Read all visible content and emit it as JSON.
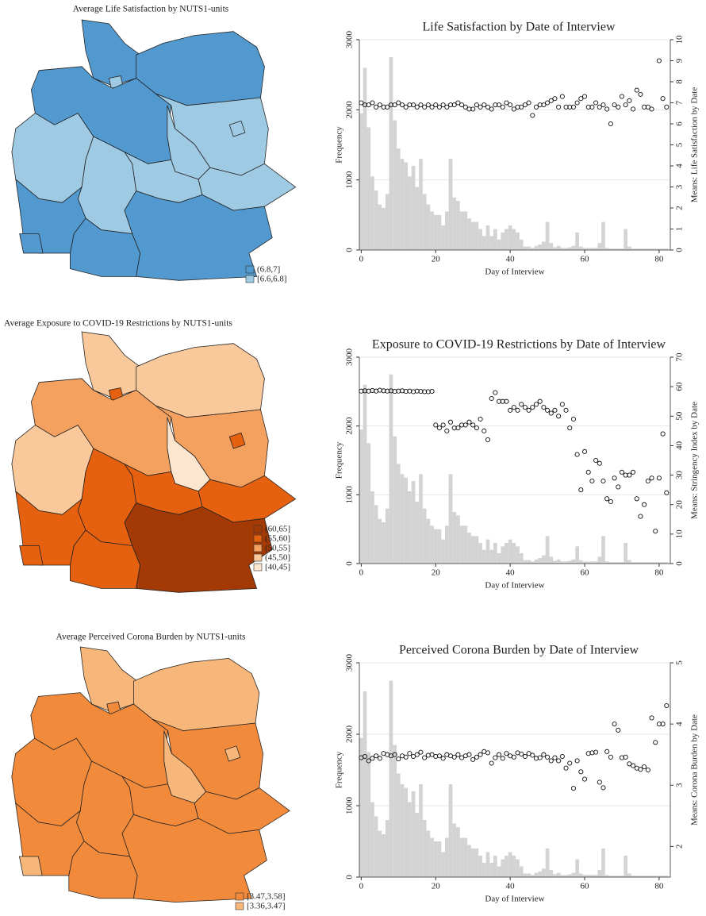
{
  "maps": [
    {
      "title": "Average Life Satisfaction by NUTS1-units",
      "legend": [
        {
          "label": "(6.8,7]",
          "color": "#5299d0"
        },
        {
          "label": "[6.6,6.8]",
          "color": "#9fcae3"
        }
      ]
    },
    {
      "title": "Average Exposure to COVID-19 Restrictions by NUTS1-units",
      "legend": [
        {
          "label": "(60,65]",
          "color": "#a33a06"
        },
        {
          "label": "(55,60]",
          "color": "#e5600f"
        },
        {
          "label": "(50,55]",
          "color": "#f4a05e"
        },
        {
          "label": "(45,50]",
          "color": "#f9c99c"
        },
        {
          "label": "[40,45]",
          "color": "#fde6cf"
        }
      ]
    },
    {
      "title": "Average Perceived Corona Burden by NUTS1-units",
      "legend": [
        {
          "label": "[3.47,3.58]",
          "color": "#f28a3b"
        },
        {
          "label": "[3.36,3.47]",
          "color": "#f7b77a"
        }
      ]
    }
  ],
  "chart_data": [
    {
      "type": "combo",
      "title": "Life Satisfaction by Date of Interview",
      "x_label": "Day of Interview",
      "y_label": "Frequency",
      "y2_label": "Means: Life Satisfaction by Date",
      "grid": true,
      "xlim": [
        -0.5,
        83
      ],
      "xticks": [
        0,
        20,
        40,
        60,
        80
      ],
      "ylim": [
        0,
        3000
      ],
      "yticks": [
        0,
        1000,
        2000,
        3000
      ],
      "y2lim": [
        0,
        10
      ],
      "y2ticks": [
        0,
        1,
        2,
        3,
        4,
        5,
        6,
        7,
        8,
        9,
        10
      ],
      "x": [
        0,
        1,
        2,
        3,
        4,
        5,
        6,
        7,
        8,
        9,
        10,
        11,
        12,
        13,
        14,
        15,
        16,
        17,
        18,
        19,
        20,
        21,
        22,
        23,
        24,
        25,
        26,
        27,
        28,
        29,
        30,
        31,
        32,
        33,
        34,
        35,
        36,
        37,
        38,
        39,
        40,
        41,
        42,
        43,
        44,
        45,
        46,
        47,
        48,
        49,
        50,
        51,
        52,
        53,
        54,
        55,
        56,
        57,
        58,
        59,
        60,
        61,
        62,
        63,
        64,
        65,
        66,
        67,
        68,
        69,
        70,
        71,
        72,
        73,
        74,
        75,
        76,
        77,
        78,
        79,
        80,
        81,
        82
      ],
      "series": [
        {
          "type": "bar",
          "color": "#d3d3d3",
          "values": [
            1950,
            2600,
            1750,
            1050,
            850,
            650,
            600,
            800,
            2750,
            1850,
            1450,
            1300,
            1250,
            1050,
            1200,
            900,
            1300,
            800,
            650,
            550,
            500,
            500,
            350,
            550,
            1300,
            750,
            700,
            550,
            550,
            450,
            400,
            400,
            300,
            200,
            350,
            200,
            300,
            150,
            250,
            300,
            350,
            300,
            250,
            150,
            50,
            50,
            30,
            60,
            80,
            120,
            400,
            100,
            40,
            60,
            30,
            30,
            40,
            60,
            250,
            50,
            30,
            30,
            30,
            30,
            100,
            400,
            30,
            20,
            20,
            20,
            20,
            300,
            50,
            20,
            20,
            20,
            20,
            20,
            20,
            20,
            20,
            20,
            20
          ]
        },
        {
          "type": "scatter",
          "axis": "y2",
          "color": "#111111",
          "values": [
            7.0,
            6.9,
            6.9,
            7.0,
            6.8,
            6.9,
            6.8,
            6.8,
            6.9,
            6.9,
            7.0,
            6.9,
            6.8,
            6.9,
            6.9,
            6.8,
            6.9,
            6.8,
            6.9,
            6.8,
            6.9,
            6.8,
            6.9,
            6.8,
            6.9,
            6.9,
            7.0,
            6.9,
            6.8,
            6.7,
            6.7,
            6.9,
            6.8,
            6.9,
            6.8,
            6.7,
            6.9,
            6.9,
            6.8,
            7.0,
            6.9,
            6.7,
            6.8,
            6.8,
            6.9,
            7.0,
            6.4,
            6.8,
            6.9,
            6.9,
            7.0,
            7.1,
            7.2,
            6.8,
            7.3,
            6.8,
            6.8,
            6.8,
            7.0,
            7.2,
            7.3,
            6.8,
            6.8,
            7.0,
            6.8,
            6.9,
            6.7,
            6.0,
            6.9,
            6.8,
            7.3,
            6.9,
            7.1,
            6.7,
            7.6,
            7.4,
            6.8,
            6.8,
            6.7,
            null,
            9.0,
            7.2,
            6.8
          ]
        }
      ]
    },
    {
      "type": "combo",
      "title": "Exposure to COVID-19 Restrictions by Date of Interview",
      "x_label": "Day of Interview",
      "y_label": "Frequency",
      "y2_label": "Means: Stringency Index by Date",
      "grid": true,
      "xlim": [
        -0.5,
        83
      ],
      "xticks": [
        0,
        20,
        40,
        60,
        80
      ],
      "ylim": [
        0,
        3000
      ],
      "yticks": [
        0,
        1000,
        2000,
        3000
      ],
      "y2lim": [
        0,
        70
      ],
      "y2ticks": [
        0,
        10,
        20,
        30,
        40,
        50,
        60,
        70
      ],
      "x": [
        0,
        1,
        2,
        3,
        4,
        5,
        6,
        7,
        8,
        9,
        10,
        11,
        12,
        13,
        14,
        15,
        16,
        17,
        18,
        19,
        20,
        21,
        22,
        23,
        24,
        25,
        26,
        27,
        28,
        29,
        30,
        31,
        32,
        33,
        34,
        35,
        36,
        37,
        38,
        39,
        40,
        41,
        42,
        43,
        44,
        45,
        46,
        47,
        48,
        49,
        50,
        51,
        52,
        53,
        54,
        55,
        56,
        57,
        58,
        59,
        60,
        61,
        62,
        63,
        64,
        65,
        66,
        67,
        68,
        69,
        70,
        71,
        72,
        73,
        74,
        75,
        76,
        77,
        78,
        79,
        80,
        81,
        82
      ],
      "series": [
        {
          "type": "bar",
          "color": "#d3d3d3",
          "values": [
            1950,
            2600,
            1750,
            1050,
            850,
            650,
            600,
            800,
            2750,
            1850,
            1450,
            1300,
            1250,
            1050,
            1200,
            900,
            1300,
            800,
            650,
            550,
            500,
            500,
            350,
            550,
            1300,
            750,
            700,
            550,
            550,
            450,
            400,
            400,
            300,
            200,
            350,
            200,
            300,
            150,
            250,
            300,
            350,
            300,
            250,
            150,
            50,
            50,
            30,
            60,
            80,
            120,
            400,
            100,
            40,
            60,
            30,
            30,
            40,
            60,
            250,
            50,
            30,
            30,
            30,
            30,
            100,
            400,
            30,
            20,
            20,
            20,
            20,
            300,
            50,
            20,
            20,
            20,
            20,
            20,
            20,
            20,
            20,
            20,
            20
          ]
        },
        {
          "type": "scatter",
          "axis": "y2",
          "color": "#111111",
          "values": [
            58.5,
            58.6,
            58.5,
            58.7,
            58.5,
            58.8,
            58.6,
            58.5,
            58.6,
            58.4,
            58.5,
            58.6,
            58.4,
            58.5,
            58.3,
            58.5,
            58.4,
            58.3,
            58.3,
            58.4,
            47,
            46,
            47,
            45,
            48,
            46,
            46,
            47,
            47,
            48,
            47,
            46,
            49,
            45,
            42,
            56,
            58,
            55,
            55,
            55,
            52,
            53,
            52,
            54,
            53,
            52,
            53,
            54,
            55,
            53,
            52,
            51,
            52,
            50,
            54,
            52,
            46,
            49,
            37,
            25,
            38,
            31,
            28,
            35,
            34,
            28,
            22,
            21,
            29,
            26,
            31,
            30,
            30,
            31,
            22,
            16,
            20,
            28,
            29,
            11,
            29,
            44,
            24
          ]
        }
      ]
    },
    {
      "type": "combo",
      "title": "Perceived Corona Burden by Date of Interview",
      "x_label": "Day of Interview",
      "y_label": "Frequency",
      "y2_label": "Means: Corona Burden by Date",
      "grid": true,
      "xlim": [
        -0.5,
        83
      ],
      "xticks": [
        0,
        20,
        40,
        60,
        80
      ],
      "ylim": [
        0,
        3000
      ],
      "yticks": [
        0,
        1000,
        2000,
        3000
      ],
      "y2lim": [
        1.5,
        5
      ],
      "y2ticks": [
        2,
        3,
        4,
        5
      ],
      "x": [
        0,
        1,
        2,
        3,
        4,
        5,
        6,
        7,
        8,
        9,
        10,
        11,
        12,
        13,
        14,
        15,
        16,
        17,
        18,
        19,
        20,
        21,
        22,
        23,
        24,
        25,
        26,
        27,
        28,
        29,
        30,
        31,
        32,
        33,
        34,
        35,
        36,
        37,
        38,
        39,
        40,
        41,
        42,
        43,
        44,
        45,
        46,
        47,
        48,
        49,
        50,
        51,
        52,
        53,
        54,
        55,
        56,
        57,
        58,
        59,
        60,
        61,
        62,
        63,
        64,
        65,
        66,
        67,
        68,
        69,
        70,
        71,
        72,
        73,
        74,
        75,
        76,
        77,
        78,
        79,
        80,
        81,
        82
      ],
      "series": [
        {
          "type": "bar",
          "color": "#d3d3d3",
          "values": [
            1950,
            2600,
            1750,
            1050,
            850,
            650,
            600,
            800,
            2750,
            1850,
            1450,
            1300,
            1250,
            1050,
            1200,
            900,
            1300,
            800,
            650,
            550,
            500,
            500,
            350,
            550,
            1300,
            750,
            700,
            550,
            550,
            450,
            400,
            400,
            300,
            200,
            350,
            200,
            300,
            150,
            250,
            300,
            350,
            300,
            250,
            150,
            50,
            50,
            30,
            60,
            80,
            120,
            400,
            100,
            40,
            60,
            30,
            30,
            40,
            60,
            250,
            50,
            30,
            30,
            30,
            30,
            100,
            400,
            30,
            20,
            20,
            20,
            20,
            300,
            50,
            20,
            20,
            20,
            20,
            20,
            20,
            20,
            20,
            20,
            20
          ]
        },
        {
          "type": "scatter",
          "axis": "y2",
          "color": "#111111",
          "values": [
            3.45,
            3.47,
            3.4,
            3.44,
            3.48,
            3.44,
            3.52,
            3.5,
            3.48,
            3.5,
            3.43,
            3.48,
            3.46,
            3.52,
            3.47,
            3.5,
            3.54,
            3.45,
            3.49,
            3.5,
            3.47,
            3.48,
            3.44,
            3.5,
            3.48,
            3.46,
            3.5,
            3.45,
            3.48,
            3.5,
            3.42,
            3.46,
            3.5,
            3.55,
            3.53,
            3.36,
            3.45,
            3.5,
            3.44,
            3.52,
            3.48,
            3.46,
            3.53,
            3.51,
            3.47,
            3.52,
            3.49,
            3.44,
            3.45,
            3.5,
            3.46,
            3.4,
            3.45,
            3.4,
            3.47,
            3.28,
            3.36,
            2.95,
            3.4,
            3.22,
            3.1,
            3.52,
            3.53,
            3.54,
            3.05,
            2.96,
            3.55,
            3.46,
            4.0,
            3.9,
            3.45,
            3.46,
            3.35,
            3.32,
            3.28,
            3.26,
            3.3,
            3.25,
            4.1,
            3.7,
            4.0,
            4.0,
            4.3
          ]
        }
      ]
    }
  ]
}
